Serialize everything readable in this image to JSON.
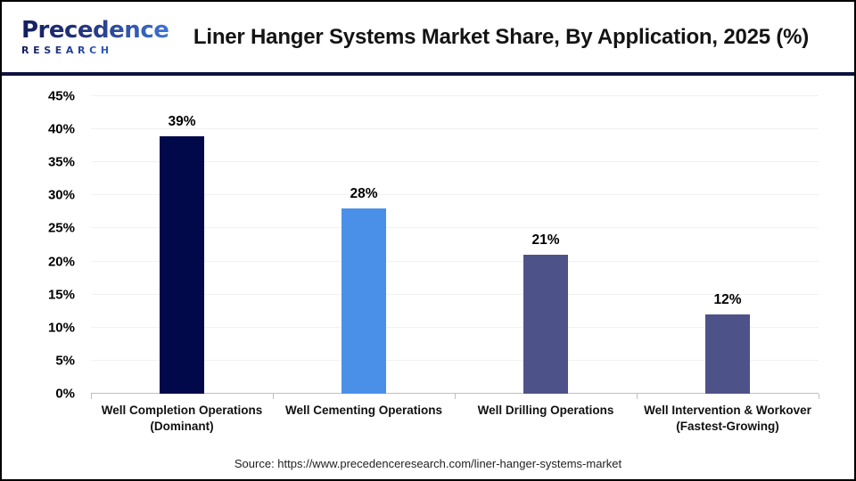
{
  "header": {
    "logo": {
      "word": "Precedence",
      "sub": "RESEARCH",
      "color_dark": "#1E2B74",
      "color_blue": "#3E74D6"
    },
    "title": "Liner Hanger Systems Market Share, By Application, 2025 (%)"
  },
  "chart_data": {
    "type": "bar",
    "title": "Liner Hanger Systems Market Share, By Application, 2025 (%)",
    "categories": [
      "Well Completion Operations\n(Dominant)",
      "Well Cementing Operations",
      "Well Drilling Operations",
      "Well Intervention & Workover\n(Fastest-Growing)"
    ],
    "values": [
      39,
      28,
      21,
      12
    ],
    "value_labels": [
      "39%",
      "28%",
      "21%",
      "12%"
    ],
    "bar_colors": [
      "#02094A",
      "#4A90E8",
      "#4D5289",
      "#4D5289"
    ],
    "ylim": [
      0,
      45
    ],
    "ytick_step": 5,
    "ytick_labels": [
      "0%",
      "5%",
      "10%",
      "15%",
      "20%",
      "25%",
      "30%",
      "35%",
      "40%",
      "45%"
    ],
    "xlabel": "",
    "ylabel": "",
    "grid": "horizontal",
    "legend": "none"
  },
  "footer": {
    "source": "Source: https://www.precedenceresearch.com/liner-hanger-systems-market"
  }
}
